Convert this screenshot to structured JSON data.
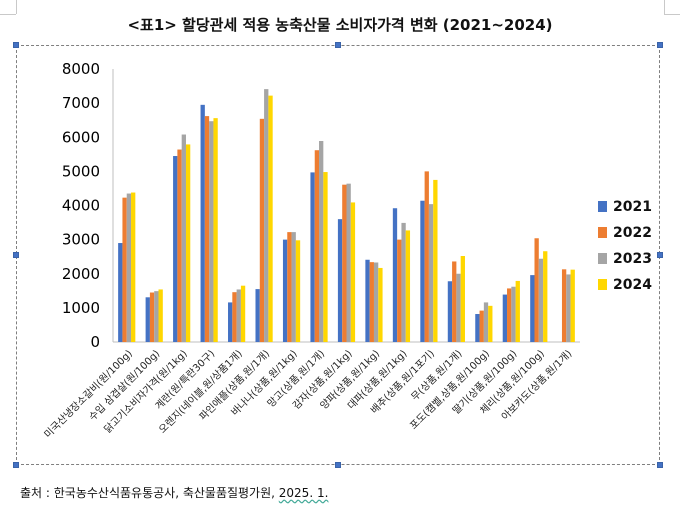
{
  "title": "<표1> 할당관세 적용 농축산물 소비자가격 변화 (2021~2024)",
  "source": {
    "text": "출처 : 한국농수산식품유통공사, 축산물품질평가원, ",
    "date": "2025. 1."
  },
  "chart_data": {
    "type": "bar",
    "title": "<표1> 할당관세 적용 농축산물 소비자가격 변화 (2021~2024)",
    "xlabel": "",
    "ylabel": "",
    "ylim": [
      0,
      8000
    ],
    "yticks": [
      0,
      1000,
      2000,
      3000,
      4000,
      5000,
      6000,
      7000,
      8000
    ],
    "grid": false,
    "legend_position": "right",
    "categories": [
      "미국산냉장소갈비(원/100g)",
      "수입 삼겹살(원/100g)",
      "닭고기소비자가격(원/1kg)",
      "계란(원/특란30구)",
      "오렌지(네이블,원/상품1개)",
      "파인애플(상품,원/1개)",
      "바나나(상품,원/1kg)",
      "망고(상품,원/1개)",
      "감자(상품,원/1kg)",
      "양파(상품,원/1kg)",
      "대파(상품,원/1kg)",
      "배추(상품,원/1포기)",
      "무(상품,원/1개)",
      "포도(캠벨,상품,원/100g)",
      "딸기(상품,원/100g)",
      "체리(상품,원/100g)",
      "아보카도(상품,원/1개)"
    ],
    "series": [
      {
        "name": "2021",
        "color": "#4472c4",
        "values": [
          2900,
          1310,
          5450,
          6950,
          1160,
          1550,
          3000,
          4970,
          3600,
          2410,
          3920,
          4140,
          1780,
          820,
          1390,
          1960,
          null
        ]
      },
      {
        "name": "2022",
        "color": "#ed7d31",
        "values": [
          4230,
          1450,
          5640,
          6620,
          1460,
          6540,
          3220,
          5620,
          4610,
          2340,
          3000,
          5000,
          2360,
          920,
          1570,
          3040,
          2130
        ]
      },
      {
        "name": "2023",
        "color": "#a5a5a5",
        "values": [
          4350,
          1490,
          6080,
          6470,
          1540,
          7410,
          3220,
          5890,
          4640,
          2330,
          3490,
          4040,
          2000,
          1160,
          1620,
          2440,
          1980
        ]
      },
      {
        "name": "2024",
        "color": "#ffd700",
        "values": [
          4380,
          1540,
          5790,
          6560,
          1650,
          7220,
          2980,
          4980,
          4090,
          2170,
          3270,
          4750,
          2520,
          1060,
          1790,
          2660,
          2120
        ]
      }
    ]
  }
}
